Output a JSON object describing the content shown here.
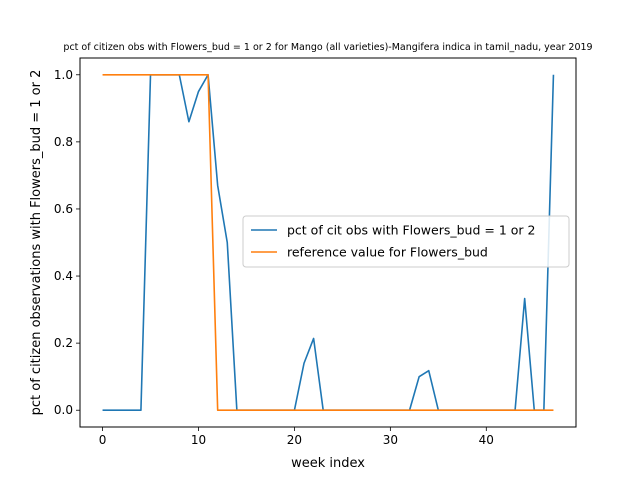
{
  "chart_data": {
    "type": "line",
    "title": "pct of citizen obs with Flowers_bud = 1 or 2 for Mango (all varieties)-Mangifera indica in tamil_nadu, year 2019",
    "xlabel": "week index",
    "ylabel": "pct of citizen observations with Flowers_bud = 1 or 2",
    "xlim": [
      -2.35,
      49.35
    ],
    "ylim": [
      -0.05,
      1.05
    ],
    "xticks": [
      0,
      10,
      20,
      30,
      40
    ],
    "xtick_labels": [
      "0",
      "10",
      "20",
      "30",
      "40"
    ],
    "yticks": [
      0.0,
      0.2,
      0.4,
      0.6,
      0.8,
      1.0
    ],
    "ytick_labels": [
      "0.0",
      "0.2",
      "0.4",
      "0.6",
      "0.8",
      "1.0"
    ],
    "grid": false,
    "legend_position": "center-right",
    "series": [
      {
        "name": "pct of cit obs with Flowers_bud = 1 or 2",
        "color": "#1f77b4",
        "x": [
          0,
          1,
          2,
          3,
          4,
          5,
          6,
          7,
          8,
          9,
          10,
          11,
          12,
          13,
          14,
          15,
          16,
          17,
          18,
          19,
          20,
          21,
          22,
          23,
          24,
          25,
          26,
          27,
          28,
          29,
          30,
          31,
          32,
          33,
          34,
          35,
          36,
          37,
          38,
          39,
          40,
          41,
          42,
          43,
          44,
          45,
          46,
          47
        ],
        "y": [
          0,
          0,
          0,
          0,
          0,
          1.0,
          1.0,
          1.0,
          1.0,
          0.86,
          0.95,
          1.0,
          0.67,
          0.5,
          0,
          0,
          0,
          0,
          0,
          0,
          0,
          0.14,
          0.214,
          0,
          0,
          0,
          0,
          0,
          0,
          0,
          0,
          0,
          0,
          0.1,
          0.118,
          0,
          0,
          0,
          0,
          0,
          0,
          0,
          0,
          0,
          0.333,
          0,
          0,
          1.0
        ]
      },
      {
        "name": "reference value for Flowers_bud",
        "color": "#ff7f0e",
        "x": [
          0,
          1,
          2,
          3,
          4,
          5,
          6,
          7,
          8,
          9,
          10,
          11,
          12,
          13,
          14,
          15,
          16,
          17,
          18,
          19,
          20,
          21,
          22,
          23,
          24,
          25,
          26,
          27,
          28,
          29,
          30,
          31,
          32,
          33,
          34,
          35,
          36,
          37,
          38,
          39,
          40,
          41,
          42,
          43,
          44,
          45,
          46,
          47
        ],
        "y": [
          1,
          1,
          1,
          1,
          1,
          1,
          1,
          1,
          1,
          1,
          1,
          1,
          0,
          0,
          0,
          0,
          0,
          0,
          0,
          0,
          0,
          0,
          0,
          0,
          0,
          0,
          0,
          0,
          0,
          0,
          0,
          0,
          0,
          0,
          0,
          0,
          0,
          0,
          0,
          0,
          0,
          0,
          0,
          0,
          0,
          0,
          0,
          0
        ]
      }
    ]
  }
}
